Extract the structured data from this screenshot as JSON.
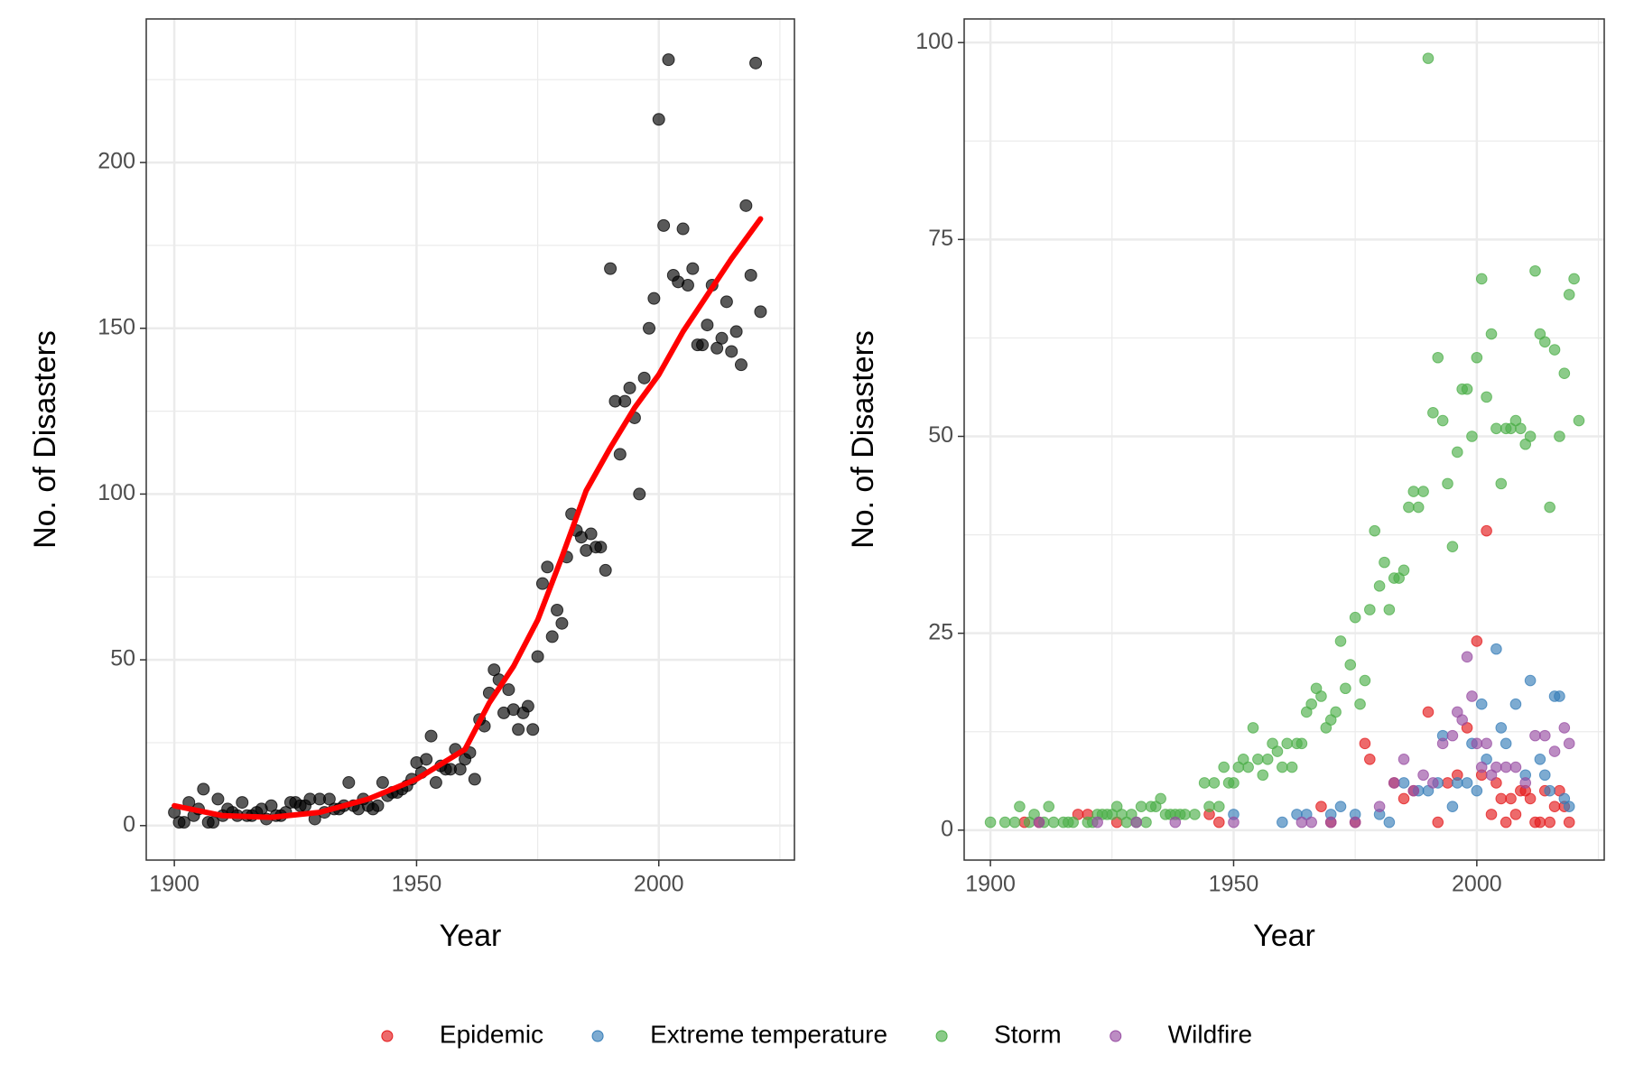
{
  "chart_data": [
    {
      "type": "scatter",
      "x_label": "Year",
      "y_label": "No. of Disasters",
      "xlim": [
        1894.2,
        2028
      ],
      "ylim": [
        -10.4,
        243.3
      ],
      "xticks": [
        1900,
        1950,
        2000
      ],
      "yticks": [
        0,
        50,
        100,
        150,
        200
      ],
      "minor_xticks": [
        1925,
        1975,
        2025
      ],
      "minor_yticks": [
        25,
        75,
        125,
        175,
        225
      ],
      "grid": true,
      "series": [
        {
          "type": "scatter",
          "color": "#000000",
          "x": [
            1900,
            1901,
            1902,
            1903,
            1904,
            1905,
            1906,
            1907,
            1908,
            1909,
            1910,
            1911,
            1912,
            1913,
            1914,
            1915,
            1916,
            1917,
            1918,
            1919,
            1920,
            1921,
            1922,
            1923,
            1924,
            1925,
            1926,
            1927,
            1928,
            1929,
            1930,
            1931,
            1932,
            1933,
            1934,
            1935,
            1936,
            1937,
            1938,
            1939,
            1940,
            1941,
            1942,
            1943,
            1944,
            1945,
            1946,
            1947,
            1948,
            1949,
            1950,
            1951,
            1952,
            1953,
            1954,
            1955,
            1956,
            1957,
            1958,
            1959,
            1960,
            1961,
            1962,
            1963,
            1964,
            1965,
            1966,
            1967,
            1968,
            1969,
            1970,
            1971,
            1972,
            1973,
            1974,
            1975,
            1976,
            1977,
            1978,
            1979,
            1980,
            1981,
            1982,
            1983,
            1984,
            1985,
            1986,
            1987,
            1988,
            1989,
            1990,
            1991,
            1992,
            1993,
            1994,
            1995,
            1996,
            1997,
            1998,
            1999,
            2000,
            2001,
            2002,
            2003,
            2004,
            2005,
            2006,
            2007,
            2008,
            2009,
            2010,
            2011,
            2012,
            2013,
            2014,
            2015,
            2016,
            2017,
            2018,
            2019,
            2020,
            2021
          ],
          "values": [
            4,
            1,
            1,
            7,
            3,
            5,
            11,
            1,
            1,
            8,
            3,
            5,
            4,
            3,
            7,
            3,
            3,
            4,
            5,
            2,
            6,
            3,
            3,
            4,
            7,
            7,
            6,
            6,
            8,
            2,
            8,
            4,
            8,
            5,
            5,
            6,
            13,
            6,
            5,
            8,
            6,
            5,
            6,
            13,
            9,
            10,
            10,
            11,
            12,
            14,
            19,
            16,
            20,
            27,
            13,
            18,
            17,
            17,
            23,
            17,
            20,
            22,
            14,
            32,
            30,
            40,
            47,
            44,
            34,
            41,
            35,
            29,
            34,
            36,
            29,
            51,
            73,
            78,
            57,
            65,
            61,
            81,
            94,
            89,
            87,
            83,
            88,
            84,
            84,
            77,
            168,
            128,
            112,
            128,
            132,
            123,
            100,
            135,
            150,
            159,
            213,
            181,
            231,
            166,
            164,
            180,
            163,
            168,
            145,
            145,
            151,
            163,
            144,
            147,
            158,
            143,
            149,
            139,
            187,
            166,
            230,
            155
          ]
        },
        {
          "type": "line",
          "color": "#ff0000",
          "x": [
            1900,
            1910,
            1920,
            1930,
            1940,
            1950,
            1960,
            1965,
            1970,
            1975,
            1980,
            1985,
            1990,
            1995,
            2000,
            2005,
            2010,
            2015,
            2021
          ],
          "values": [
            6,
            3,
            2.5,
            4,
            8,
            14,
            23,
            37,
            48,
            62,
            81,
            101,
            114,
            126,
            136,
            149,
            160,
            171,
            183
          ]
        }
      ]
    },
    {
      "type": "scatter",
      "x_label": "Year",
      "y_label": "No. of Disasters",
      "xlim": [
        1894.6,
        2026.2
      ],
      "ylim": [
        -3.8,
        103
      ],
      "xticks": [
        1900,
        1950,
        2000
      ],
      "yticks": [
        0,
        25,
        50,
        75,
        100
      ],
      "minor_xticks": [
        1925,
        1975,
        2025
      ],
      "minor_yticks": [
        12.5,
        37.5,
        62.5,
        87.5
      ],
      "grid": true,
      "legend": "bottom",
      "series": [
        {
          "type": "scatter",
          "name": "Epidemic",
          "color": "#E41A1C",
          "x": [
            1907,
            1910,
            1918,
            1920,
            1926,
            1945,
            1947,
            1968,
            1970,
            1975,
            1977,
            1978,
            1983,
            1985,
            1987,
            1990,
            1992,
            1994,
            1996,
            1998,
            2000,
            2001,
            2002,
            2003,
            2004,
            2005,
            2006,
            2007,
            2008,
            2009,
            2010,
            2011,
            2012,
            2013,
            2014,
            2015,
            2016,
            2017,
            2018,
            2019
          ],
          "values": [
            1,
            1,
            2,
            2,
            1,
            2,
            1,
            3,
            1,
            1,
            11,
            9,
            6,
            4,
            5,
            15,
            1,
            6,
            7,
            13,
            24,
            7,
            38,
            2,
            6,
            4,
            1,
            4,
            2,
            5,
            5,
            4,
            1,
            1,
            5,
            1,
            3,
            5,
            3,
            1
          ]
        },
        {
          "type": "scatter",
          "name": "Extreme temperature",
          "color": "#377EB8",
          "x": [
            1950,
            1960,
            1963,
            1965,
            1970,
            1972,
            1975,
            1980,
            1982,
            1985,
            1988,
            1990,
            1992,
            1993,
            1995,
            1996,
            1998,
            1999,
            2000,
            2001,
            2002,
            2004,
            2005,
            2006,
            2008,
            2010,
            2011,
            2013,
            2014,
            2015,
            2016,
            2017,
            2018,
            2019
          ],
          "values": [
            2,
            1,
            2,
            2,
            2,
            3,
            2,
            2,
            1,
            6,
            5,
            5,
            6,
            12,
            3,
            6,
            6,
            11,
            5,
            16,
            9,
            23,
            13,
            11,
            16,
            7,
            19,
            9,
            7,
            5,
            17,
            17,
            4,
            3
          ]
        },
        {
          "type": "scatter",
          "name": "Storm",
          "color": "#4DAF4A",
          "x": [
            1900,
            1903,
            1905,
            1906,
            1908,
            1909,
            1911,
            1912,
            1913,
            1915,
            1916,
            1917,
            1920,
            1921,
            1922,
            1923,
            1924,
            1925,
            1926,
            1927,
            1928,
            1929,
            1930,
            1931,
            1932,
            1933,
            1934,
            1935,
            1936,
            1937,
            1938,
            1939,
            1940,
            1942,
            1944,
            1945,
            1946,
            1947,
            1948,
            1949,
            1950,
            1951,
            1952,
            1953,
            1954,
            1955,
            1956,
            1957,
            1958,
            1959,
            1960,
            1961,
            1962,
            1963,
            1964,
            1965,
            1966,
            1967,
            1968,
            1969,
            1970,
            1971,
            1972,
            1973,
            1974,
            1975,
            1976,
            1977,
            1978,
            1979,
            1980,
            1981,
            1982,
            1983,
            1984,
            1985,
            1986,
            1987,
            1988,
            1989,
            1990,
            1991,
            1992,
            1993,
            1994,
            1995,
            1996,
            1997,
            1998,
            1999,
            2000,
            2001,
            2002,
            2003,
            2004,
            2005,
            2006,
            2007,
            2008,
            2009,
            2010,
            2011,
            2012,
            2013,
            2014,
            2015,
            2016,
            2017,
            2018,
            2019,
            2020,
            2021
          ],
          "values": [
            1,
            1,
            1,
            3,
            1,
            2,
            1,
            3,
            1,
            1,
            1,
            1,
            1,
            1,
            2,
            2,
            2,
            2,
            3,
            2,
            1,
            2,
            1,
            3,
            1,
            3,
            3,
            4,
            2,
            2,
            2,
            2,
            2,
            2,
            6,
            3,
            6,
            3,
            8,
            6,
            6,
            8,
            9,
            8,
            13,
            9,
            7,
            9,
            11,
            10,
            8,
            11,
            8,
            11,
            11,
            15,
            16,
            18,
            17,
            13,
            14,
            15,
            24,
            18,
            21,
            27,
            16,
            19,
            28,
            38,
            31,
            34,
            28,
            32,
            32,
            33,
            41,
            43,
            41,
            43,
            98,
            53,
            60,
            52,
            44,
            36,
            48,
            56,
            56,
            50,
            60,
            70,
            55,
            63,
            51,
            44,
            51,
            51,
            52,
            51,
            49,
            50,
            71,
            63,
            62,
            41,
            61,
            50,
            58,
            68,
            70,
            52
          ]
        },
        {
          "type": "scatter",
          "name": "Wildfire",
          "color": "#984EA3",
          "x": [
            1910,
            1922,
            1930,
            1938,
            1950,
            1964,
            1966,
            1970,
            1975,
            1980,
            1983,
            1985,
            1987,
            1989,
            1991,
            1993,
            1995,
            1996,
            1997,
            1998,
            1999,
            2000,
            2001,
            2002,
            2003,
            2004,
            2006,
            2008,
            2010,
            2012,
            2014,
            2016,
            2018,
            2019
          ],
          "values": [
            1,
            1,
            1,
            1,
            1,
            1,
            1,
            1,
            1,
            3,
            6,
            9,
            5,
            7,
            6,
            11,
            12,
            15,
            14,
            22,
            17,
            11,
            8,
            11,
            7,
            8,
            8,
            8,
            6,
            12,
            12,
            10,
            13,
            11
          ]
        }
      ]
    }
  ]
}
